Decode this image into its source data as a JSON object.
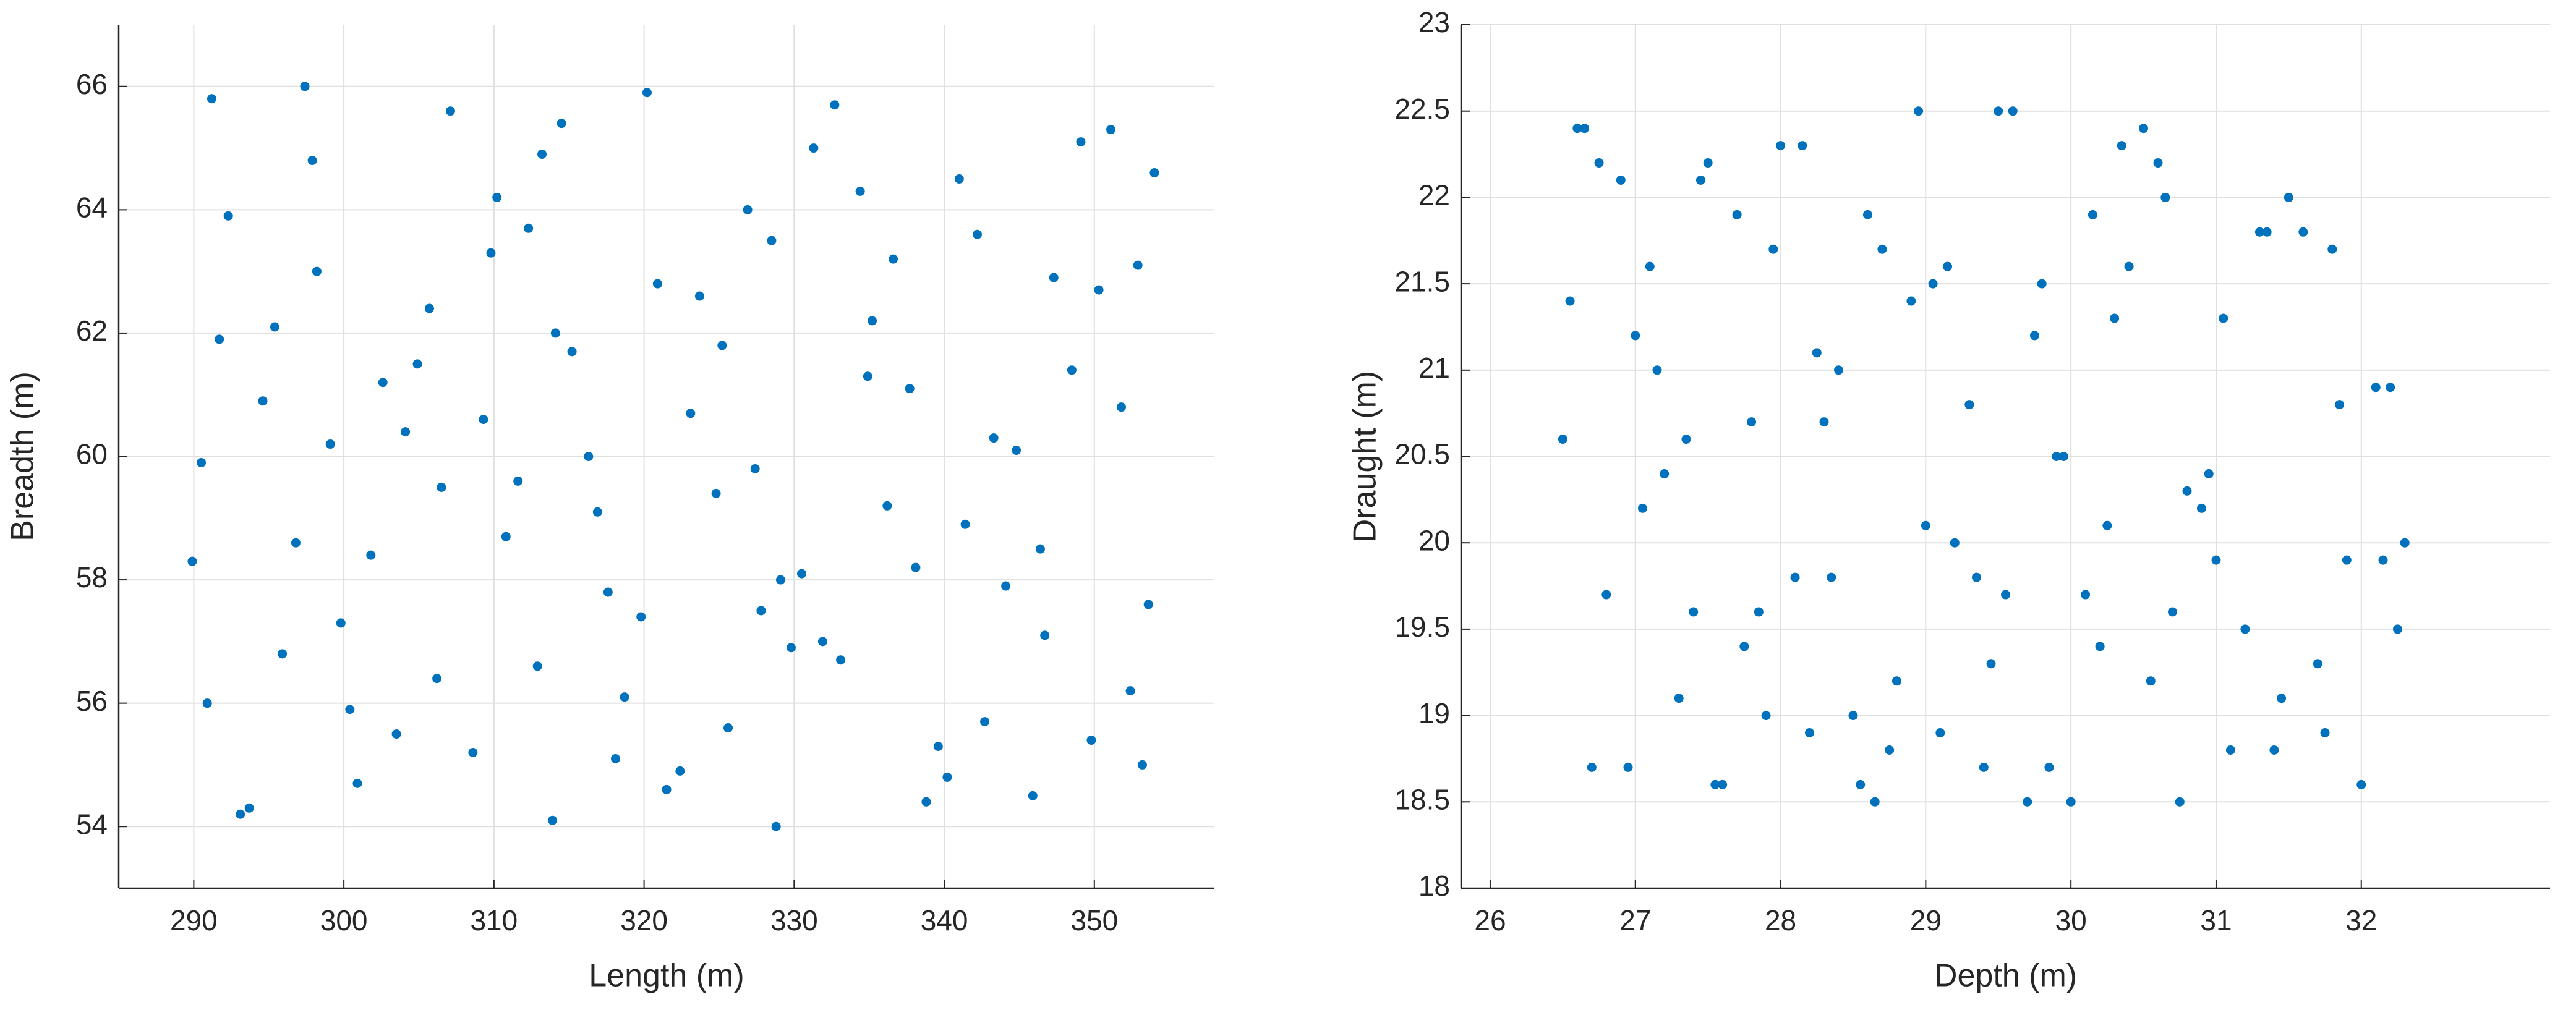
{
  "chart_data": [
    {
      "type": "scatter",
      "xlabel": "Length (m)",
      "ylabel": "Breadth (m)",
      "color": "#0072bd",
      "grid": true,
      "xlim": [
        285,
        358
      ],
      "ylim": [
        53,
        67
      ],
      "xticks": [
        290,
        300,
        310,
        320,
        330,
        340,
        350
      ],
      "yticks": [
        54,
        56,
        58,
        60,
        62,
        64,
        66
      ],
      "x": [
        291.2,
        295.4,
        299.8,
        304.1,
        308.6,
        312.3,
        316.9,
        321.5,
        325.2,
        329.8,
        334.4,
        338.1,
        342.7,
        347.3,
        351.8,
        353.6,
        290.5,
        293.7,
        297.9,
        302.6,
        306.2,
        310.8,
        314.5,
        318.1,
        323.7,
        327.4,
        331.9,
        336.6,
        340.2,
        344.8,
        349.1,
        352.4,
        292.3,
        296.8,
        300.4,
        305.7,
        309.3,
        313.9,
        317.6,
        320.2,
        324.8,
        328.5,
        333.1,
        337.7,
        341.4,
        345.9,
        350.3,
        354.0,
        290.9,
        294.6,
        298.2,
        303.5,
        307.1,
        311.6,
        315.2,
        319.8,
        322.4,
        326.9,
        330.5,
        335.2,
        339.6,
        343.3,
        346.7,
        351.1,
        293.1,
        297.4,
        301.8,
        304.9,
        309.8,
        312.9,
        316.3,
        320.9,
        325.6,
        329.1,
        332.7,
        336.2,
        341.0,
        344.1,
        348.5,
        353.2,
        291.7,
        295.9,
        300.9,
        306.5,
        310.2,
        314.1,
        318.7,
        323.1,
        327.8,
        331.3,
        334.9,
        338.8,
        342.2,
        346.4,
        349.8,
        352.9,
        289.9,
        299.1,
        313.2,
        328.8
      ],
      "values": [
        65.8,
        62.1,
        57.3,
        60.4,
        55.2,
        63.7,
        59.1,
        54.6,
        61.8,
        56.9,
        64.3,
        58.2,
        55.7,
        62.9,
        60.8,
        57.6,
        59.9,
        54.3,
        64.8,
        61.2,
        56.4,
        58.7,
        65.4,
        55.1,
        62.6,
        59.8,
        57.0,
        63.2,
        54.8,
        60.1,
        65.1,
        56.2,
        63.9,
        58.6,
        55.9,
        62.4,
        60.6,
        54.1,
        57.8,
        65.9,
        59.4,
        63.5,
        56.7,
        61.1,
        58.9,
        54.5,
        62.7,
        64.6,
        56.0,
        60.9,
        63.0,
        55.5,
        65.6,
        59.6,
        61.7,
        57.4,
        54.9,
        64.0,
        58.1,
        62.2,
        55.3,
        60.3,
        57.1,
        65.3,
        54.2,
        66.0,
        58.4,
        61.5,
        63.3,
        56.6,
        60.0,
        62.8,
        55.6,
        58.0,
        65.7,
        59.2,
        64.5,
        57.9,
        61.4,
        55.0,
        61.9,
        56.8,
        54.7,
        59.5,
        64.2,
        62.0,
        56.1,
        60.7,
        57.5,
        65.0,
        61.3,
        54.4,
        63.6,
        58.5,
        55.4,
        63.1,
        58.3,
        60.2,
        64.9,
        54.0
      ]
    },
    {
      "type": "scatter",
      "xlabel": "Depth (m)",
      "ylabel": "Draught (m)",
      "color": "#0072bd",
      "grid": true,
      "xlim": [
        25.8,
        33.3
      ],
      "ylim": [
        18,
        23
      ],
      "xticks": [
        26,
        27,
        28,
        29,
        30,
        31,
        32
      ],
      "yticks": [
        18,
        18.5,
        19,
        19.5,
        20,
        20.5,
        21,
        21.5,
        22,
        22.5,
        23
      ],
      "x": [
        26.6,
        27.0,
        27.4,
        27.8,
        28.2,
        28.6,
        29.0,
        29.4,
        29.8,
        30.2,
        30.6,
        31.0,
        31.4,
        31.8,
        32.2,
        26.8,
        27.2,
        27.6,
        28.0,
        28.4,
        28.8,
        29.2,
        29.6,
        30.0,
        30.4,
        30.8,
        31.2,
        31.6,
        32.0,
        26.5,
        26.9,
        27.3,
        27.7,
        28.1,
        28.5,
        28.9,
        29.3,
        29.7,
        30.1,
        30.5,
        30.9,
        31.3,
        31.7,
        32.1,
        32.3,
        26.7,
        27.1,
        27.5,
        27.9,
        28.3,
        28.7,
        29.1,
        29.5,
        29.9,
        30.3,
        30.7,
        31.1,
        31.5,
        31.9,
        26.55,
        26.95,
        27.35,
        27.75,
        28.15,
        28.55,
        28.95,
        29.35,
        29.75,
        30.15,
        30.55,
        30.95,
        31.35,
        31.75,
        32.15,
        26.65,
        27.05,
        27.45,
        27.85,
        28.25,
        28.65,
        29.05,
        29.45,
        29.85,
        30.25,
        30.65,
        31.05,
        31.45,
        31.85,
        32.25,
        26.75,
        27.15,
        27.55,
        27.95,
        28.35,
        28.75,
        29.15,
        29.55,
        29.95,
        30.35,
        30.75
      ],
      "values": [
        22.4,
        21.2,
        19.6,
        20.7,
        18.9,
        21.9,
        20.1,
        18.7,
        21.5,
        19.4,
        22.2,
        19.9,
        18.8,
        21.7,
        20.9,
        19.7,
        20.4,
        18.6,
        22.3,
        21.0,
        19.2,
        20.0,
        22.5,
        18.5,
        21.6,
        20.3,
        19.5,
        21.8,
        18.6,
        20.6,
        22.1,
        19.1,
        21.9,
        19.8,
        19.0,
        21.4,
        20.8,
        18.5,
        19.7,
        22.4,
        20.2,
        21.8,
        19.3,
        20.9,
        20.0,
        18.7,
        21.6,
        22.2,
        19.0,
        20.7,
        21.7,
        18.9,
        22.5,
        20.5,
        21.3,
        19.6,
        18.8,
        22.0,
        19.9,
        21.4,
        18.7,
        20.6,
        19.4,
        22.3,
        18.6,
        22.5,
        19.8,
        21.2,
        21.9,
        19.2,
        20.4,
        21.8,
        18.9,
        19.9,
        22.4,
        20.2,
        22.1,
        19.6,
        21.1,
        18.5,
        21.5,
        19.3,
        18.7,
        20.1,
        22.0,
        21.3,
        19.1,
        20.8,
        19.5,
        22.2,
        21.0,
        18.6,
        21.7,
        19.8,
        18.8,
        21.6,
        19.7,
        20.5,
        22.3,
        18.5
      ]
    }
  ]
}
